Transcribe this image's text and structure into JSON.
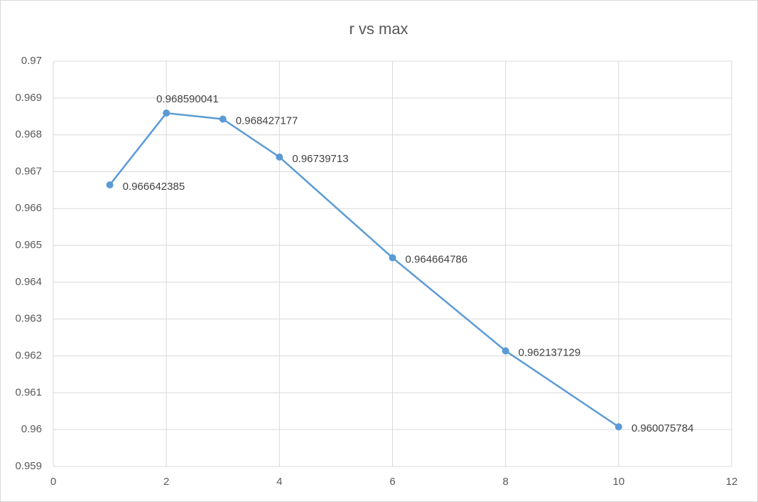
{
  "chart_data": {
    "type": "line",
    "title": "r vs max",
    "x": [
      1,
      2,
      3,
      4,
      6,
      8,
      10
    ],
    "series": [
      {
        "color": "#5b9bd5",
        "values": [
          0.966642385,
          0.968590041,
          0.968427177,
          0.96739713,
          0.964664786,
          0.962137129,
          0.960075784
        ]
      }
    ],
    "xlim": [
      0,
      12
    ],
    "xticks": [
      0,
      2,
      4,
      6,
      8,
      10,
      12
    ],
    "ylim": [
      0.959,
      0.97
    ],
    "yticks": [
      0.959,
      0.96,
      0.961,
      0.962,
      0.963,
      0.964,
      0.965,
      0.966,
      0.967,
      0.968,
      0.969,
      0.97
    ],
    "grid": true,
    "data_labels": true
  }
}
